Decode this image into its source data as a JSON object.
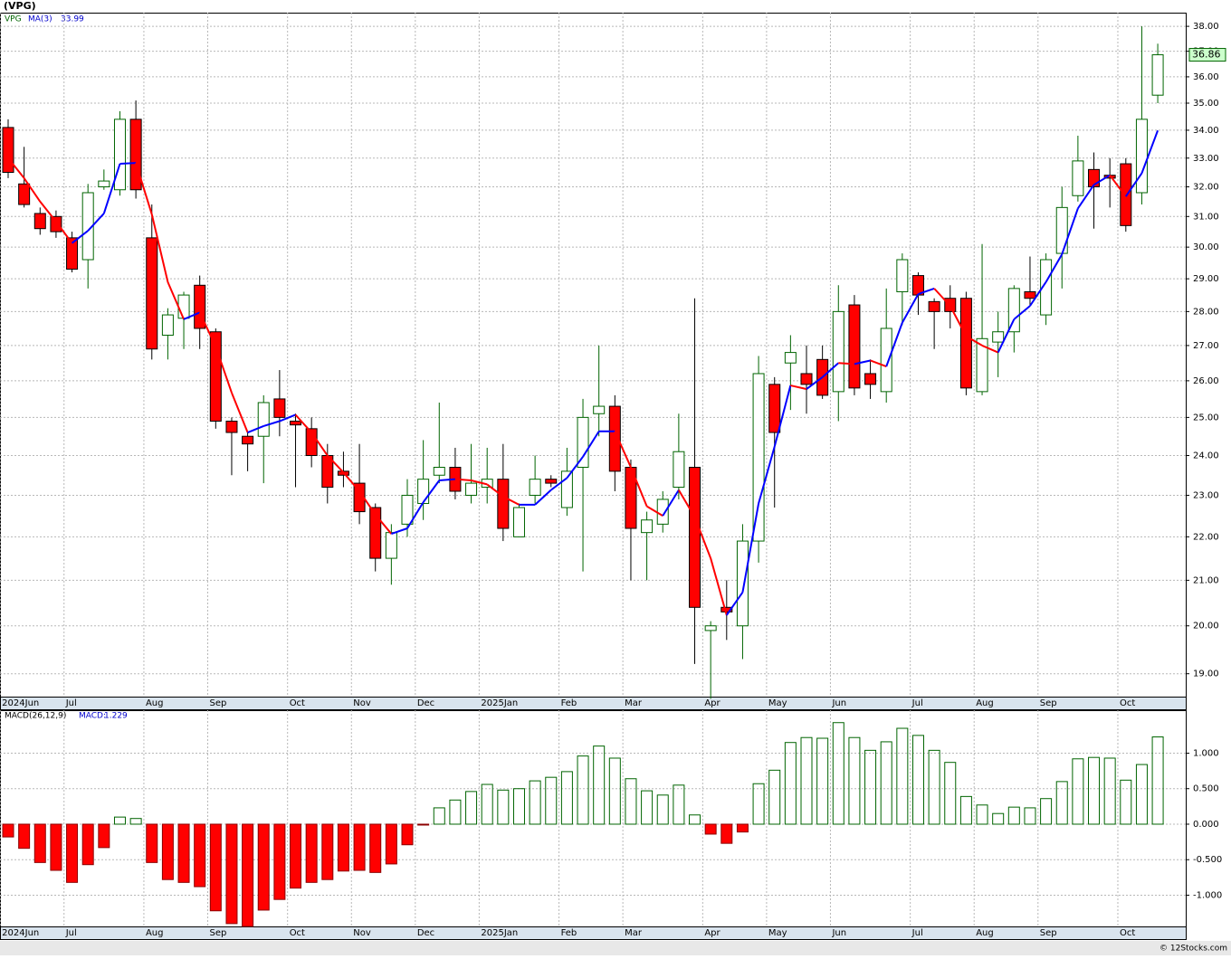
{
  "chart_data": [
    {
      "type": "candlestick",
      "title": "(VPG)",
      "ticker": "VPG",
      "categories": [
        "2024Jun",
        null,
        null,
        null,
        "Jul",
        null,
        null,
        null,
        null,
        "Aug",
        null,
        null,
        null,
        "Sep",
        null,
        null,
        null,
        null,
        "Oct",
        null,
        null,
        null,
        "Nov",
        null,
        null,
        null,
        "Dec",
        null,
        null,
        null,
        "2025Jan",
        null,
        null,
        null,
        null,
        "Feb",
        null,
        null,
        null,
        "Mar",
        null,
        null,
        null,
        null,
        "Apr",
        null,
        null,
        null,
        "May",
        null,
        null,
        null,
        "Jun",
        null,
        null,
        null,
        null,
        "Jul",
        null,
        null,
        null,
        "Aug",
        null,
        null,
        null,
        "Sep",
        null,
        null,
        null,
        null,
        "Oct",
        null,
        null
      ],
      "open": [
        34.1,
        32.1,
        31.1,
        31.0,
        30.3,
        29.6,
        32.0,
        31.9,
        34.4,
        30.3,
        27.3,
        27.8,
        28.8,
        27.4,
        24.9,
        24.5,
        24.5,
        25.5,
        24.9,
        24.7,
        24.0,
        23.6,
        23.3,
        22.7,
        21.5,
        22.3,
        22.8,
        23.5,
        23.7,
        23.0,
        23.2,
        23.4,
        22.0,
        23.0,
        23.4,
        22.7,
        23.7,
        25.1,
        25.3,
        23.7,
        22.1,
        22.3,
        23.2,
        23.7,
        19.9,
        20.4,
        20.0,
        21.9,
        25.9,
        26.5,
        26.2,
        26.6,
        25.7,
        28.2,
        26.2,
        25.7,
        28.6,
        29.1,
        28.3,
        28.4,
        28.4,
        25.7,
        27.1,
        27.4,
        28.6,
        27.9,
        29.8,
        31.7,
        32.6,
        32.4,
        32.8,
        31.8,
        35.3
      ],
      "high": [
        34.4,
        33.4,
        31.3,
        31.2,
        30.5,
        32.1,
        32.6,
        34.7,
        35.1,
        31.4,
        28.1,
        28.6,
        29.1,
        27.5,
        25.0,
        24.6,
        25.6,
        26.3,
        25.1,
        25.0,
        24.3,
        24.1,
        24.3,
        22.8,
        22.3,
        23.4,
        24.4,
        25.4,
        24.2,
        24.3,
        24.2,
        24.3,
        22.8,
        24.0,
        23.5,
        24.2,
        25.5,
        27.0,
        25.6,
        23.9,
        22.6,
        23.1,
        25.1,
        28.4,
        20.1,
        21.0,
        22.3,
        26.7,
        26.1,
        27.3,
        27.0,
        27.0,
        28.8,
        28.5,
        26.6,
        28.7,
        29.8,
        29.2,
        28.4,
        28.8,
        28.6,
        30.1,
        28.0,
        28.8,
        29.7,
        29.8,
        32.0,
        33.8,
        33.2,
        33.0,
        33.0,
        38.0,
        37.3
      ],
      "low": [
        32.3,
        31.3,
        30.4,
        30.3,
        29.2,
        28.7,
        31.9,
        31.7,
        31.6,
        26.6,
        26.6,
        26.9,
        26.9,
        24.7,
        23.5,
        23.6,
        23.3,
        24.5,
        23.2,
        23.7,
        22.8,
        23.2,
        22.3,
        21.2,
        20.9,
        22.0,
        22.4,
        23.3,
        22.9,
        22.8,
        22.8,
        21.9,
        22.0,
        22.8,
        23.2,
        22.5,
        21.2,
        24.5,
        23.1,
        21.0,
        21.0,
        22.1,
        22.9,
        19.2,
        18.5,
        19.7,
        19.3,
        21.4,
        22.7,
        25.2,
        25.1,
        25.5,
        24.9,
        25.6,
        25.5,
        25.4,
        27.6,
        27.9,
        26.9,
        27.5,
        25.6,
        25.6,
        26.1,
        26.8,
        28.2,
        27.6,
        28.7,
        31.5,
        30.6,
        31.3,
        30.5,
        31.4,
        35.0
      ],
      "close": [
        32.5,
        31.4,
        30.6,
        30.5,
        29.3,
        31.8,
        32.2,
        34.4,
        31.9,
        26.9,
        27.9,
        28.5,
        27.5,
        24.9,
        24.6,
        24.3,
        25.4,
        25.0,
        24.8,
        24.0,
        23.2,
        23.5,
        22.6,
        21.5,
        22.1,
        23.0,
        23.4,
        23.7,
        23.1,
        23.3,
        23.4,
        22.2,
        22.7,
        23.4,
        23.3,
        23.6,
        25.0,
        25.3,
        23.6,
        22.2,
        22.4,
        22.9,
        24.1,
        20.4,
        20.0,
        20.3,
        21.9,
        26.2,
        24.6,
        26.8,
        25.9,
        25.6,
        28.0,
        25.8,
        25.9,
        27.5,
        29.6,
        28.5,
        28.0,
        28.0,
        25.8,
        27.2,
        27.4,
        28.7,
        28.4,
        29.6,
        31.3,
        32.9,
        32.0,
        32.3,
        30.7,
        34.4,
        36.86
      ],
      "up_color": "#006400",
      "down_color": "#ff0000",
      "ma": {
        "name": "MA(3)",
        "up_color": "#0000ff",
        "down_color": "#ff0000",
        "values": [
          33.0,
          32.3,
          31.5,
          30.83,
          30.13,
          30.53,
          31.1,
          32.8,
          32.83,
          31.07,
          28.9,
          27.77,
          27.97,
          26.97,
          25.67,
          24.6,
          24.77,
          24.9,
          25.07,
          24.6,
          24.0,
          23.57,
          23.1,
          22.53,
          22.07,
          22.2,
          22.83,
          23.37,
          23.4,
          23.37,
          23.27,
          22.97,
          22.77,
          22.77,
          23.13,
          23.43,
          23.97,
          24.63,
          24.63,
          23.7,
          22.73,
          22.5,
          23.13,
          22.47,
          21.5,
          20.23,
          20.73,
          22.8,
          24.23,
          25.87,
          25.77,
          26.1,
          26.5,
          26.47,
          26.57,
          26.4,
          27.67,
          28.53,
          28.7,
          28.17,
          27.27,
          27.0,
          26.8,
          27.77,
          28.17,
          28.9,
          29.77,
          31.27,
          32.07,
          32.4,
          31.67,
          32.47,
          33.99
        ]
      },
      "log_scale": true,
      "grid": true,
      "ylim": [
        18.54,
        38.56
      ],
      "yticks": [
        {
          "value": 19,
          "label": "19.00"
        },
        {
          "value": 20,
          "label": "20.00"
        },
        {
          "value": 21,
          "label": "21.00"
        },
        {
          "value": 22,
          "label": "22.00"
        },
        {
          "value": 23,
          "label": "23.00"
        },
        {
          "value": 24,
          "label": "24.00"
        },
        {
          "value": 25,
          "label": "25.00"
        },
        {
          "value": 26,
          "label": "26.00"
        },
        {
          "value": 27,
          "label": "27.00"
        },
        {
          "value": 28,
          "label": "28.00"
        },
        {
          "value": 29,
          "label": "29.00"
        },
        {
          "value": 30,
          "label": "30.00"
        },
        {
          "value": 31,
          "label": "31.00"
        },
        {
          "value": 32,
          "label": "32.00"
        },
        {
          "value": 33,
          "label": "33.00"
        },
        {
          "value": 34,
          "label": "34.00"
        },
        {
          "value": 35,
          "label": "35.00"
        },
        {
          "value": 36,
          "label": "36.00"
        },
        {
          "value": 37,
          "label": "37.00"
        },
        {
          "value": 38,
          "label": "38.00"
        }
      ]
    },
    {
      "type": "bar",
      "title": "MACD(26,12,9)",
      "value_name": "MACD:",
      "up_color": "#006400",
      "down_color": "#ff0000",
      "grid": true,
      "values": [
        -0.18,
        -0.34,
        -0.54,
        -0.65,
        -0.82,
        -0.57,
        -0.33,
        0.1,
        0.08,
        -0.54,
        -0.78,
        -0.82,
        -0.88,
        -1.22,
        -1.4,
        -1.44,
        -1.21,
        -1.06,
        -0.9,
        -0.82,
        -0.78,
        -0.66,
        -0.65,
        -0.68,
        -0.56,
        -0.29,
        -0.01,
        0.23,
        0.34,
        0.46,
        0.56,
        0.48,
        0.5,
        0.61,
        0.66,
        0.74,
        0.96,
        1.1,
        0.93,
        0.64,
        0.47,
        0.41,
        0.55,
        0.13,
        -0.14,
        -0.27,
        -0.11,
        0.57,
        0.76,
        1.15,
        1.22,
        1.21,
        1.43,
        1.22,
        1.04,
        1.16,
        1.35,
        1.25,
        1.04,
        0.87,
        0.39,
        0.27,
        0.15,
        0.24,
        0.23,
        0.36,
        0.6,
        0.92,
        0.94,
        0.93,
        0.62,
        0.84,
        1.229
      ],
      "ylim": [
        -1.44,
        1.605
      ],
      "yticks": [
        {
          "value": -1,
          "label": "-1.000"
        },
        {
          "value": -0.5,
          "label": "-0.500"
        },
        {
          "value": 0,
          "label": "0.000"
        },
        {
          "value": 0.5,
          "label": "0.500"
        },
        {
          "value": 1,
          "label": "1.000"
        }
      ]
    }
  ],
  "footer": "© 12Stocks.com"
}
